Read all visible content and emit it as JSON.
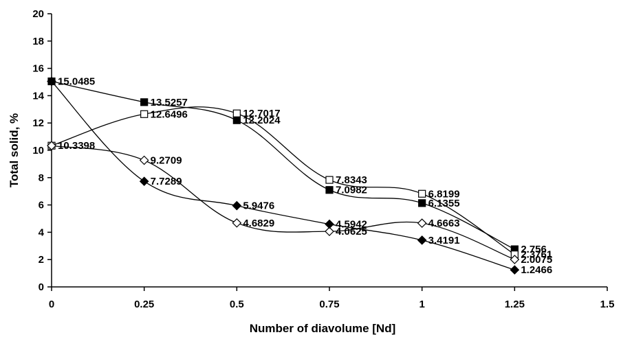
{
  "chart_data": {
    "type": "line",
    "title": "",
    "xlabel": "Number of diavolume [Nd]",
    "ylabel": "Total solid, %",
    "xlim": [
      0,
      1.5
    ],
    "ylim": [
      0,
      20
    ],
    "x_ticks": [
      "0",
      "0.25",
      "0.5",
      "0.75",
      "1",
      "1.25",
      "1.5"
    ],
    "y_ticks": [
      "0",
      "2",
      "4",
      "6",
      "8",
      "10",
      "12",
      "14",
      "16",
      "18",
      "20"
    ],
    "grid": false,
    "legend": "none",
    "x": [
      0,
      0.25,
      0.5,
      0.75,
      1,
      1.25
    ],
    "series": [
      {
        "marker": "filled-square",
        "color": "#000000",
        "values": [
          15.0485,
          13.5257,
          12.2024,
          7.0982,
          6.1355,
          2.756
        ],
        "labels": [
          "15.0485",
          "13.5257",
          "12.2024",
          "7.0982",
          "6.1355",
          "2.756"
        ]
      },
      {
        "marker": "open-square",
        "color": "#000000",
        "values": [
          10.3398,
          12.6496,
          12.7017,
          7.8343,
          6.8199,
          2.3761
        ],
        "labels": [
          "10.3398",
          "12.6496",
          "12.7017",
          "7.8343",
          "6.8199",
          "2.3761"
        ]
      },
      {
        "marker": "open-diamond",
        "color": "#000000",
        "values": [
          10.3398,
          9.2709,
          4.6829,
          4.0625,
          4.6663,
          2.0075
        ],
        "labels": [
          "",
          "9.2709",
          "4.6829",
          "4.0625",
          "4.6663",
          "2.0075"
        ]
      },
      {
        "marker": "filled-diamond",
        "color": "#000000",
        "values": [
          15.0485,
          7.7289,
          5.9476,
          4.5942,
          3.4191,
          1.2466
        ],
        "labels": [
          "",
          "7.7289",
          "5.9476",
          "4.5942",
          "3.4191",
          "1.2466"
        ]
      }
    ]
  }
}
